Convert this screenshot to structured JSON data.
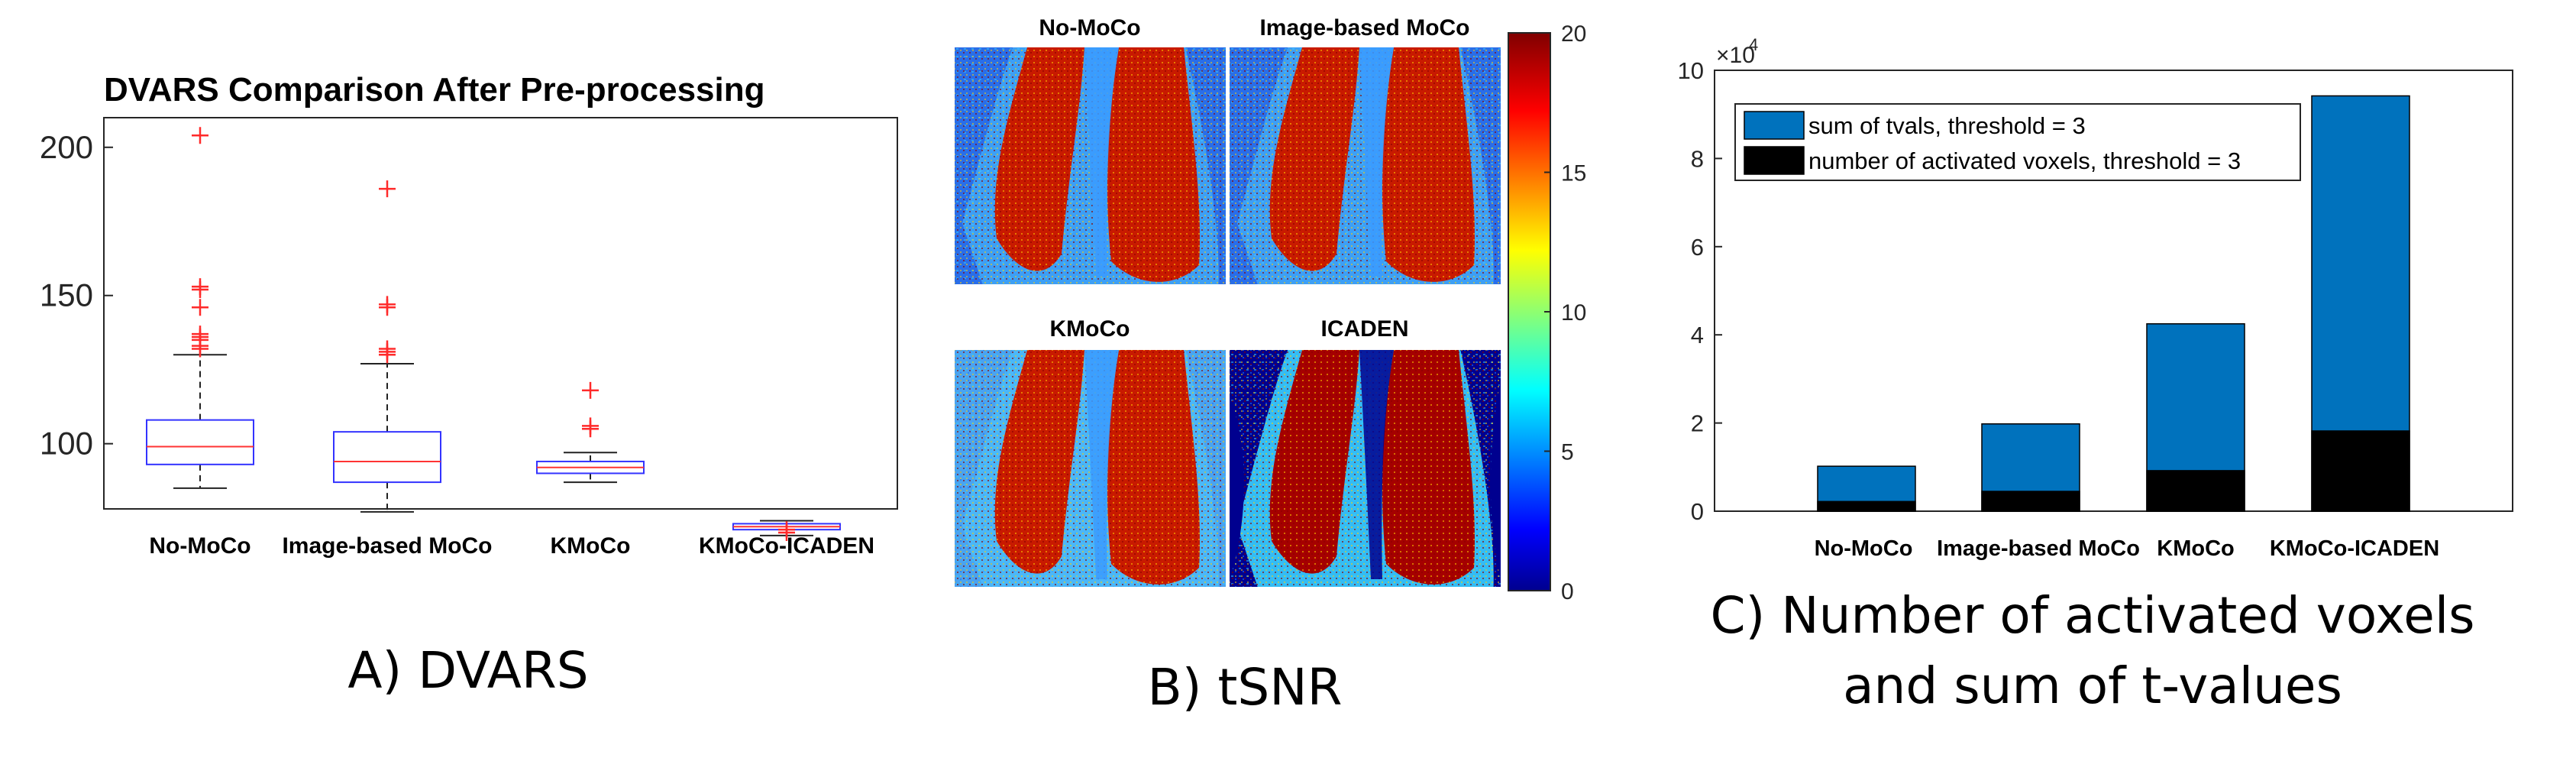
{
  "chart_data": [
    {
      "panel": "A",
      "type": "box",
      "title": "DVARS Comparison After Pre-processing",
      "caption": "A) DVARS",
      "categories": [
        "No-MoCo",
        "Image-based MoCo",
        "KMoCo",
        "KMoCo-ICADEN"
      ],
      "yticks": [
        100,
        150,
        200
      ],
      "ylim": [
        78,
        210
      ],
      "boxes": [
        {
          "name": "No-MoCo",
          "whisker_low": 85,
          "q1": 93,
          "median": 99,
          "q3": 108,
          "whisker_high": 130,
          "outliers": [
            132,
            133,
            135,
            136,
            137,
            146,
            152,
            153,
            204
          ]
        },
        {
          "name": "Image-based MoCo",
          "whisker_low": 77,
          "q1": 87,
          "median": 94,
          "q3": 104,
          "whisker_high": 127,
          "outliers": [
            130,
            131,
            132,
            146,
            147,
            186
          ]
        },
        {
          "name": "KMoCo",
          "whisker_low": 87,
          "q1": 90,
          "median": 92,
          "q3": 94,
          "whisker_high": 97,
          "outliers": [
            105,
            106,
            118
          ]
        },
        {
          "name": "KMoCo-ICADEN",
          "whisker_low": 69,
          "q1": 71,
          "median": 72,
          "q3": 73,
          "whisker_high": 74,
          "outliers": [
            70,
            71
          ]
        }
      ],
      "colors": {
        "box": "#3333ff",
        "median": "#ff3333",
        "whisker": "#222222",
        "outlier": "#ff2a2a"
      }
    },
    {
      "panel": "B",
      "type": "heatmap",
      "caption": "B) tSNR",
      "maps": [
        "No-MoCo",
        "Image-based MoCo",
        "KMoCo",
        "ICADEN"
      ],
      "colorbar": {
        "ticks": [
          0,
          5,
          10,
          15,
          20
        ],
        "range": [
          0,
          20
        ],
        "colormap": "jet"
      }
    },
    {
      "panel": "C",
      "type": "bar",
      "caption_lines": [
        "C) Number of activated voxels",
        "and sum of t-values"
      ],
      "categories": [
        "No-MoCo",
        "Image-based MoCo",
        "KMoCo",
        "KMoCo-ICADEN"
      ],
      "series": [
        {
          "name": "sum of tvals, threshold = 3",
          "values": [
            1.02,
            1.98,
            4.25,
            9.42
          ],
          "color": "#0072bd"
        },
        {
          "name": "number of activated voxels, threshold = 3",
          "values": [
            0.22,
            0.45,
            0.92,
            1.82
          ],
          "color": "#000000"
        }
      ],
      "yticks": [
        0,
        2,
        4,
        6,
        8,
        10
      ],
      "ylim": [
        0,
        10
      ],
      "exponent_label": "×10",
      "exponent_power": "4",
      "legend_position": "top-left"
    }
  ]
}
